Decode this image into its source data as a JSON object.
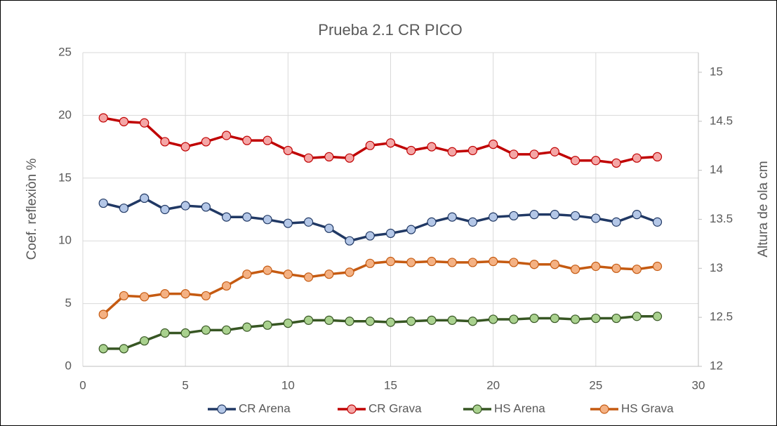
{
  "chart_data": {
    "type": "line",
    "title": "Prueba 2.1 CR PICO",
    "y_label": "Coef. reflexiòn %",
    "y2_label": "Altura de ola cm",
    "x": [
      1,
      2,
      3,
      4,
      5,
      6,
      7,
      8,
      9,
      10,
      11,
      12,
      13,
      14,
      15,
      16,
      17,
      18,
      19,
      20,
      21,
      22,
      23,
      24,
      25,
      26,
      27,
      28
    ],
    "xlim": [
      0,
      30
    ],
    "xticks": [
      0,
      5,
      10,
      15,
      20,
      25,
      30
    ],
    "ylim": [
      0,
      25
    ],
    "yticks": [
      0,
      5,
      10,
      15,
      20,
      25
    ],
    "y2lim": [
      12,
      15.2
    ],
    "y2ticks": [
      12,
      12.5,
      13,
      13.5,
      14,
      14.5,
      15
    ],
    "grid": true,
    "legend": "bottom",
    "series": [
      {
        "name": "CR Arena",
        "color": "#203864",
        "marker_color": "#b4c7e7",
        "values": [
          13.0,
          12.6,
          13.4,
          12.5,
          12.8,
          12.7,
          11.9,
          11.9,
          11.7,
          11.4,
          11.5,
          11.0,
          10.0,
          10.4,
          10.6,
          10.9,
          11.5,
          11.9,
          11.5,
          11.9,
          12.0,
          12.1,
          12.1,
          12.0,
          11.8,
          11.5,
          12.1,
          11.5
        ]
      },
      {
        "name": "CR Grava",
        "color": "#c00000",
        "marker_color": "#f4a6a6",
        "values": [
          19.8,
          19.5,
          19.4,
          17.9,
          17.5,
          17.9,
          18.4,
          18.0,
          18.0,
          17.2,
          16.6,
          16.7,
          16.6,
          17.6,
          17.8,
          17.2,
          17.5,
          17.1,
          17.2,
          17.7,
          16.9,
          16.9,
          17.1,
          16.4,
          16.4,
          16.2,
          16.6,
          16.7
        ]
      },
      {
        "name": "HS Arena",
        "color": "#375623",
        "marker_color": "#a9d18e",
        "axis": "y2",
        "values": [
          12.18,
          12.18,
          12.26,
          12.34,
          12.34,
          12.37,
          12.37,
          12.4,
          12.42,
          12.44,
          12.47,
          12.47,
          12.46,
          12.46,
          12.45,
          12.46,
          12.47,
          12.47,
          12.46,
          12.48,
          12.48,
          12.49,
          12.49,
          12.48,
          12.49,
          12.49,
          12.51,
          12.51
        ]
      },
      {
        "name": "HS Grava",
        "color": "#c55a11",
        "marker_color": "#f4b183",
        "axis": "y2",
        "values": [
          12.53,
          12.72,
          12.71,
          12.74,
          12.74,
          12.72,
          12.82,
          12.94,
          12.98,
          12.94,
          12.91,
          12.94,
          12.96,
          13.05,
          13.07,
          13.06,
          13.07,
          13.06,
          13.06,
          13.07,
          13.06,
          13.04,
          13.04,
          12.99,
          13.02,
          13.0,
          12.99,
          13.02
        ]
      }
    ]
  }
}
